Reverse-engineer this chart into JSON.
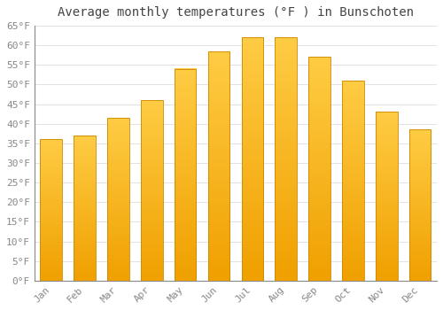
{
  "title": "Average monthly temperatures (°F ) in Bunschoten",
  "months": [
    "Jan",
    "Feb",
    "Mar",
    "Apr",
    "May",
    "Jun",
    "Jul",
    "Aug",
    "Sep",
    "Oct",
    "Nov",
    "Dec"
  ],
  "values": [
    36,
    37,
    41.5,
    46,
    54,
    58.5,
    62,
    62,
    57,
    51,
    43,
    38.5
  ],
  "bar_color_bottom": "#F0A000",
  "bar_color_top": "#FFCC44",
  "bar_edge_color": "#CC8800",
  "ylim": [
    0,
    65
  ],
  "yticks": [
    0,
    5,
    10,
    15,
    20,
    25,
    30,
    35,
    40,
    45,
    50,
    55,
    60,
    65
  ],
  "ytick_labels": [
    "0°F",
    "5°F",
    "10°F",
    "15°F",
    "20°F",
    "25°F",
    "30°F",
    "35°F",
    "40°F",
    "45°F",
    "50°F",
    "55°F",
    "60°F",
    "65°F"
  ],
  "background_color": "#FFFFFF",
  "grid_color": "#DDDDDD",
  "title_fontsize": 10,
  "tick_fontsize": 8,
  "figsize": [
    5.0,
    3.5
  ],
  "dpi": 100,
  "bar_width": 0.65
}
